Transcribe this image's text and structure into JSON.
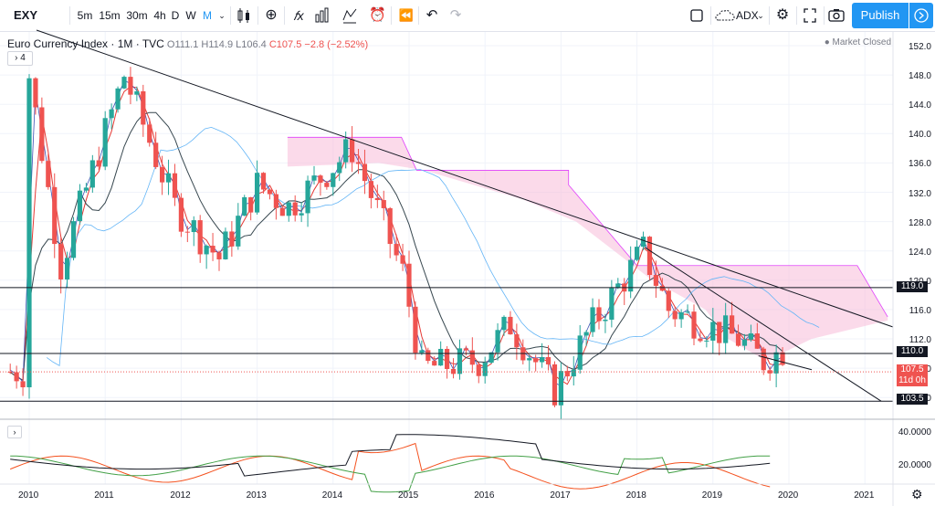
{
  "toolbar": {
    "symbol": "EXY",
    "intervals": [
      "5m",
      "15m",
      "30m",
      "4h",
      "D",
      "W",
      "M"
    ],
    "active_interval": "M",
    "indicator_name": "ADX",
    "publish_label": "Publish"
  },
  "legend": {
    "title": "Euro Currency Index · 1M · TVC",
    "open": "O111.1",
    "high": "H114.9",
    "low": "L106.4",
    "close": "C107.5",
    "change": "−2.8 (−2.52%)",
    "collapsed_count": "4",
    "market_status": "Market Closed"
  },
  "price_axis": {
    "labels": [
      "152.0",
      "148.0",
      "144.0",
      "140.0",
      "136.0",
      "132.0",
      "128.0",
      "124.0",
      "120.0",
      "116.0",
      "112.0",
      "108.0",
      "104.0"
    ],
    "tags": {
      "level_119": "119.0",
      "level_110": "110.0",
      "last_price": "107.5",
      "countdown": "11d 0h",
      "level_103": "103.5"
    }
  },
  "indicator_axis": {
    "labels": [
      "40.0000",
      "20.0000"
    ]
  },
  "time_axis": {
    "labels": [
      "2010",
      "2011",
      "2012",
      "2013",
      "2014",
      "2015",
      "2016",
      "2017",
      "2018",
      "2019",
      "2020",
      "2021"
    ]
  },
  "colors": {
    "up": "#26a69a",
    "down": "#ef5350",
    "cloud": "#f8bbd9",
    "accent": "#2196f3"
  },
  "chart_data": {
    "type": "candlestick",
    "title": "Euro Currency Index · 1M · TVC",
    "ylim": [
      102,
      154
    ],
    "horizontal_levels": [
      119.0,
      110.0,
      103.5
    ],
    "last_price": 107.5,
    "series": [
      {
        "name": "EXY",
        "values": [
          {
            "x": "2010-01",
            "c": 148
          },
          {
            "x": "2010-06",
            "c": 122
          },
          {
            "x": "2011-04",
            "c": 148
          },
          {
            "x": "2011-12",
            "c": 130
          },
          {
            "x": "2012-07",
            "c": 123
          },
          {
            "x": "2013-01",
            "c": 133
          },
          {
            "x": "2013-06",
            "c": 130
          },
          {
            "x": "2014-04",
            "c": 138
          },
          {
            "x": "2014-12",
            "c": 121
          },
          {
            "x": "2015-03",
            "c": 108
          },
          {
            "x": "2015-12",
            "c": 109
          },
          {
            "x": "2016-05",
            "c": 114
          },
          {
            "x": "2016-12",
            "c": 105
          },
          {
            "x": "2017-06",
            "c": 114
          },
          {
            "x": "2018-02",
            "c": 124
          },
          {
            "x": "2018-06",
            "c": 116
          },
          {
            "x": "2019-05",
            "c": 112
          },
          {
            "x": "2019-09",
            "c": 109
          },
          {
            "x": "2020-01",
            "c": 111
          },
          {
            "x": "2020-02",
            "c": 107.5
          }
        ]
      }
    ]
  }
}
